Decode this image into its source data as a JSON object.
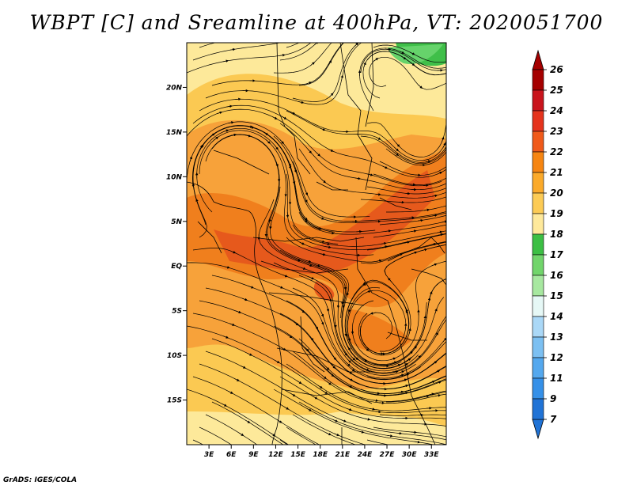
{
  "title": "WBPT [C] and Sreamline at 400hPa, VT: 2020051700",
  "credit": "GrADS: IGES/COLA",
  "map": {
    "lat_range": [
      -20,
      25
    ],
    "lon_range": [
      0,
      35
    ],
    "lat_ticks": [
      {
        "label": "20N",
        "value": 20
      },
      {
        "label": "15N",
        "value": 15
      },
      {
        "label": "10N",
        "value": 10
      },
      {
        "label": "5N",
        "value": 5
      },
      {
        "label": "EQ",
        "value": 0
      },
      {
        "label": "5S",
        "value": -5
      },
      {
        "label": "10S",
        "value": -10
      },
      {
        "label": "15S",
        "value": -15
      }
    ],
    "lon_ticks": [
      {
        "label": "3E",
        "value": 3
      },
      {
        "label": "6E",
        "value": 6
      },
      {
        "label": "9E",
        "value": 9
      },
      {
        "label": "12E",
        "value": 12
      },
      {
        "label": "15E",
        "value": 15
      },
      {
        "label": "18E",
        "value": 18
      },
      {
        "label": "21E",
        "value": 21
      },
      {
        "label": "24E",
        "value": 24
      },
      {
        "label": "27E",
        "value": 27
      },
      {
        "label": "30E",
        "value": 30
      },
      {
        "label": "33E",
        "value": 33
      }
    ],
    "shading_colors": {
      "c19": "#fde99a",
      "c20": "#fbc952",
      "c21": "#f7a23a",
      "c22": "#f07f1d",
      "c23": "#e6591c",
      "c17": "#3fbf49",
      "c18": "#66d36b"
    }
  },
  "colorbar": {
    "labels": [
      "26",
      "25",
      "24",
      "23",
      "22",
      "21",
      "20",
      "19",
      "18",
      "17",
      "16",
      "15",
      "14",
      "13",
      "12",
      "11",
      "9",
      "7"
    ],
    "colors": [
      "#a50000",
      "#c9141c",
      "#e5331c",
      "#f05a1a",
      "#f68511",
      "#fbaa2a",
      "#fccb55",
      "#fee99b",
      "#3cbf44",
      "#71d56b",
      "#a7e8a0",
      "#e6f8f6",
      "#aad8f7",
      "#7cc0f2",
      "#54a8ee",
      "#3590e8",
      "#2073d6"
    ],
    "top_arrow_color": "#a50000",
    "bottom_arrow_color": "#2073d6"
  }
}
